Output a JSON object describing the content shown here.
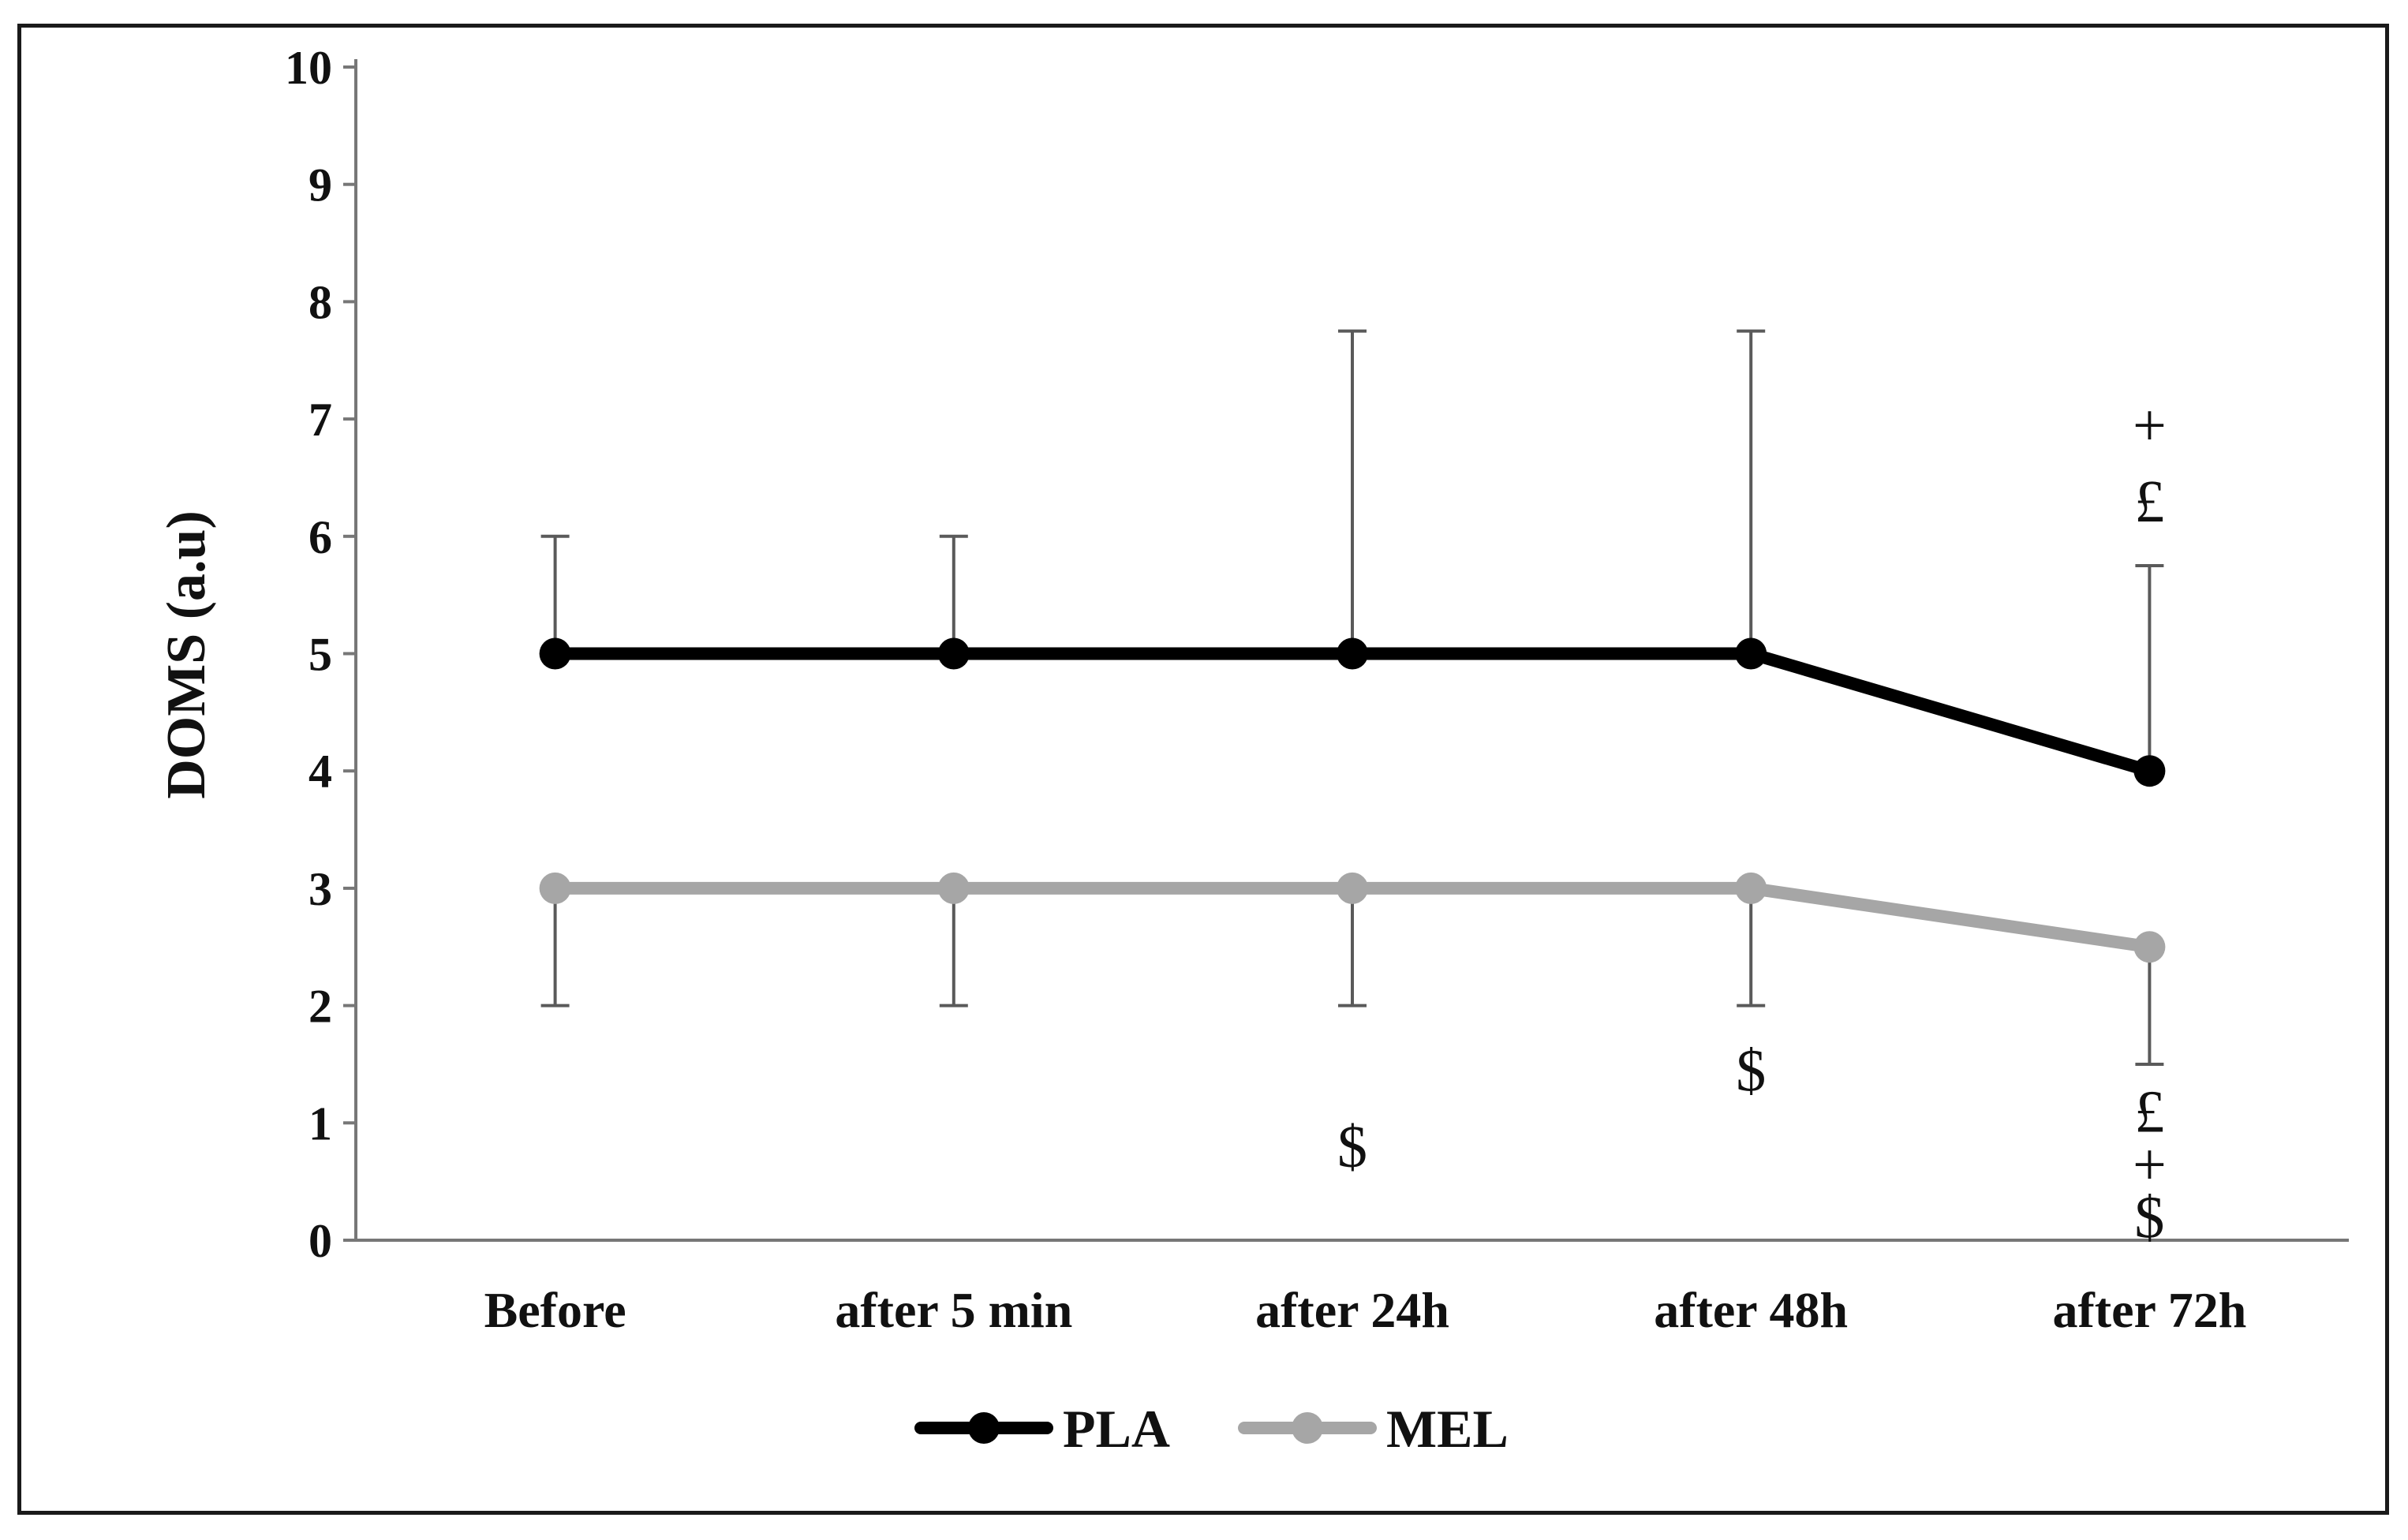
{
  "chart_data": {
    "type": "line",
    "title": "",
    "xlabel": "",
    "ylabel": "DOMS (a.u)",
    "ylim": [
      0,
      10
    ],
    "yticks": [
      0,
      1,
      2,
      3,
      4,
      5,
      6,
      7,
      8,
      9,
      10
    ],
    "grid": false,
    "legend_position": "bottom-center",
    "categories": [
      "Before",
      "after 5 min",
      "after 24h",
      "after 48h",
      "after 72h"
    ],
    "series": [
      {
        "name": "PLA",
        "color": "#000000",
        "values": [
          5,
          5,
          5,
          5,
          4
        ],
        "error_upper": [
          6,
          6,
          7.75,
          7.75,
          5.75
        ]
      },
      {
        "name": "MEL",
        "color": "#a6a6a6",
        "values": [
          3,
          3,
          3,
          3,
          2.5
        ],
        "error_lower": [
          2,
          2,
          2,
          2,
          1.5
        ]
      }
    ],
    "annotations": [
      {
        "category": "after 24h",
        "text": "$",
        "y": 0.8
      },
      {
        "category": "after 48h",
        "text": "$",
        "y": 1.45
      },
      {
        "category": "after 72h",
        "text": "+",
        "y": 6.95
      },
      {
        "category": "after 72h",
        "text": "£",
        "y": 6.3
      },
      {
        "category": "after 72h",
        "text": "£",
        "y": 1.1
      },
      {
        "category": "after 72h",
        "text": "+",
        "y": 0.65
      },
      {
        "category": "after 72h",
        "text": "$",
        "y": 0.2
      }
    ]
  }
}
